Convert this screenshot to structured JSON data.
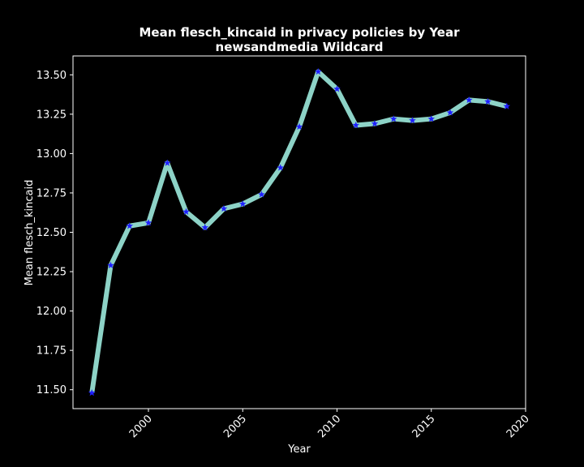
{
  "chart_data": {
    "type": "line",
    "title": "Mean flesch_kincaid in privacy policies by Year",
    "subtitle": "newsandmedia Wildcard",
    "xlabel": "Year",
    "ylabel": "Mean flesch_kincaid",
    "xlim": [
      1996,
      2020
    ],
    "ylim": [
      11.38,
      13.62
    ],
    "xticks": [
      2000,
      2005,
      2010,
      2015,
      2020
    ],
    "yticks": [
      11.5,
      11.75,
      12.0,
      12.25,
      12.5,
      12.75,
      13.0,
      13.25,
      13.5
    ],
    "ytick_labels": [
      "11.50",
      "11.75",
      "12.00",
      "12.25",
      "12.50",
      "12.75",
      "13.00",
      "13.25",
      "13.50"
    ],
    "grid": false,
    "series": [
      {
        "x": [
          1997,
          1998,
          1999,
          2000,
          2001,
          2002,
          2003,
          2004,
          2005,
          2006,
          2007,
          2008,
          2009,
          2010,
          2011,
          2012,
          2013,
          2014,
          2015,
          2016,
          2017,
          2018,
          2019
        ],
        "y": [
          11.48,
          12.29,
          12.54,
          12.56,
          12.94,
          12.63,
          12.53,
          12.65,
          12.68,
          12.74,
          12.91,
          13.17,
          13.52,
          13.41,
          13.18,
          13.19,
          13.22,
          13.21,
          13.22,
          13.26,
          13.34,
          13.33,
          13.3
        ],
        "line_color": "#8dd3c7",
        "marker": "star",
        "marker_color": "#1f1fff"
      }
    ]
  }
}
